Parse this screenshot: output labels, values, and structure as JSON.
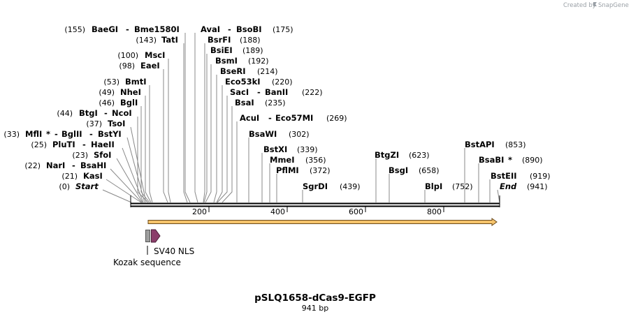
{
  "credit": {
    "prefix": "Created by",
    "brand": "SnapGene"
  },
  "map": {
    "title": "pSLQ1658-dCas9-EGFP",
    "length_label": "941 bp",
    "total_bp": 941,
    "ruler_ticks": [
      200,
      400,
      600,
      800
    ]
  },
  "sites": [
    {
      "pos": "(155)",
      "name": "BaeGI",
      "alias": "Bme1580I",
      "alias_pos": "",
      "bp": 155
    },
    {
      "pos": "(143)",
      "name": "TatI",
      "bp": 143
    },
    {
      "pos": "(100)",
      "name": "MscI",
      "bp": 100
    },
    {
      "pos": "(98)",
      "name": "EaeI",
      "bp": 98
    },
    {
      "pos": "(53)",
      "name": "BmtI",
      "bp": 53
    },
    {
      "pos": "(49)",
      "name": "NheI",
      "bp": 49
    },
    {
      "pos": "(46)",
      "name": "BglI",
      "bp": 46
    },
    {
      "pos": "(44)",
      "name": "BtgI",
      "alias": "NcoI",
      "bp": 44
    },
    {
      "pos": "(37)",
      "name": "TsoI",
      "bp": 37
    },
    {
      "pos": "(33)",
      "name": "MflI",
      "star": "*",
      "alias": "BglII",
      "alias2": "BstYI",
      "bp": 33
    },
    {
      "pos": "(25)",
      "name": "PluTI",
      "alias": "HaeII",
      "bp": 25
    },
    {
      "pos": "(23)",
      "name": "SfoI",
      "bp": 23
    },
    {
      "pos": "(22)",
      "name": "NarI",
      "alias": "BsaHI",
      "bp": 22
    },
    {
      "pos": "(21)",
      "name": "KasI",
      "bp": 21
    },
    {
      "pos": "(0)",
      "name": "Start",
      "bp": 0
    },
    {
      "pos": "(175)",
      "name": "AvaI",
      "alias": "BsoBI",
      "bp": 175
    },
    {
      "pos": "(188)",
      "name": "BsrFI",
      "bp": 188
    },
    {
      "pos": "(189)",
      "name": "BsiEI",
      "bp": 189
    },
    {
      "pos": "(192)",
      "name": "BsmI",
      "bp": 192
    },
    {
      "pos": "(214)",
      "name": "BseRI",
      "bp": 214
    },
    {
      "pos": "(220)",
      "name": "Eco53kI",
      "bp": 220
    },
    {
      "pos": "(222)",
      "name": "SacI",
      "alias": "BanII",
      "bp": 222
    },
    {
      "pos": "(235)",
      "name": "BsaI",
      "bp": 235
    },
    {
      "pos": "(269)",
      "name": "AcuI",
      "alias": "Eco57MI",
      "bp": 269
    },
    {
      "pos": "(302)",
      "name": "BsaWI",
      "bp": 302
    },
    {
      "pos": "(339)",
      "name": "BstXI",
      "bp": 339
    },
    {
      "pos": "(356)",
      "name": "MmeI",
      "bp": 356
    },
    {
      "pos": "(372)",
      "name": "PflMI",
      "bp": 372
    },
    {
      "pos": "(439)",
      "name": "SgrDI",
      "bp": 439
    },
    {
      "pos": "(623)",
      "name": "BtgZI",
      "bp": 623
    },
    {
      "pos": "(658)",
      "name": "BsgI",
      "bp": 658
    },
    {
      "pos": "(752)",
      "name": "BlpI",
      "bp": 752
    },
    {
      "pos": "(853)",
      "name": "BstAPI",
      "bp": 853
    },
    {
      "pos": "(890)",
      "name": "BsaBI",
      "star": "*",
      "bp": 890
    },
    {
      "pos": "(919)",
      "name": "BstEII",
      "bp": 919
    },
    {
      "pos": "(941)",
      "name": "End",
      "bp": 941
    }
  ],
  "features": [
    {
      "name": "SV40 NLS",
      "color": "#8b3d6a"
    },
    {
      "name": "Kozak sequence",
      "color": "#9e9e9e"
    }
  ],
  "colors": {
    "orf_fill": "#f5c36b",
    "orf_stroke": "#6b4a1a",
    "line": "#888888"
  }
}
